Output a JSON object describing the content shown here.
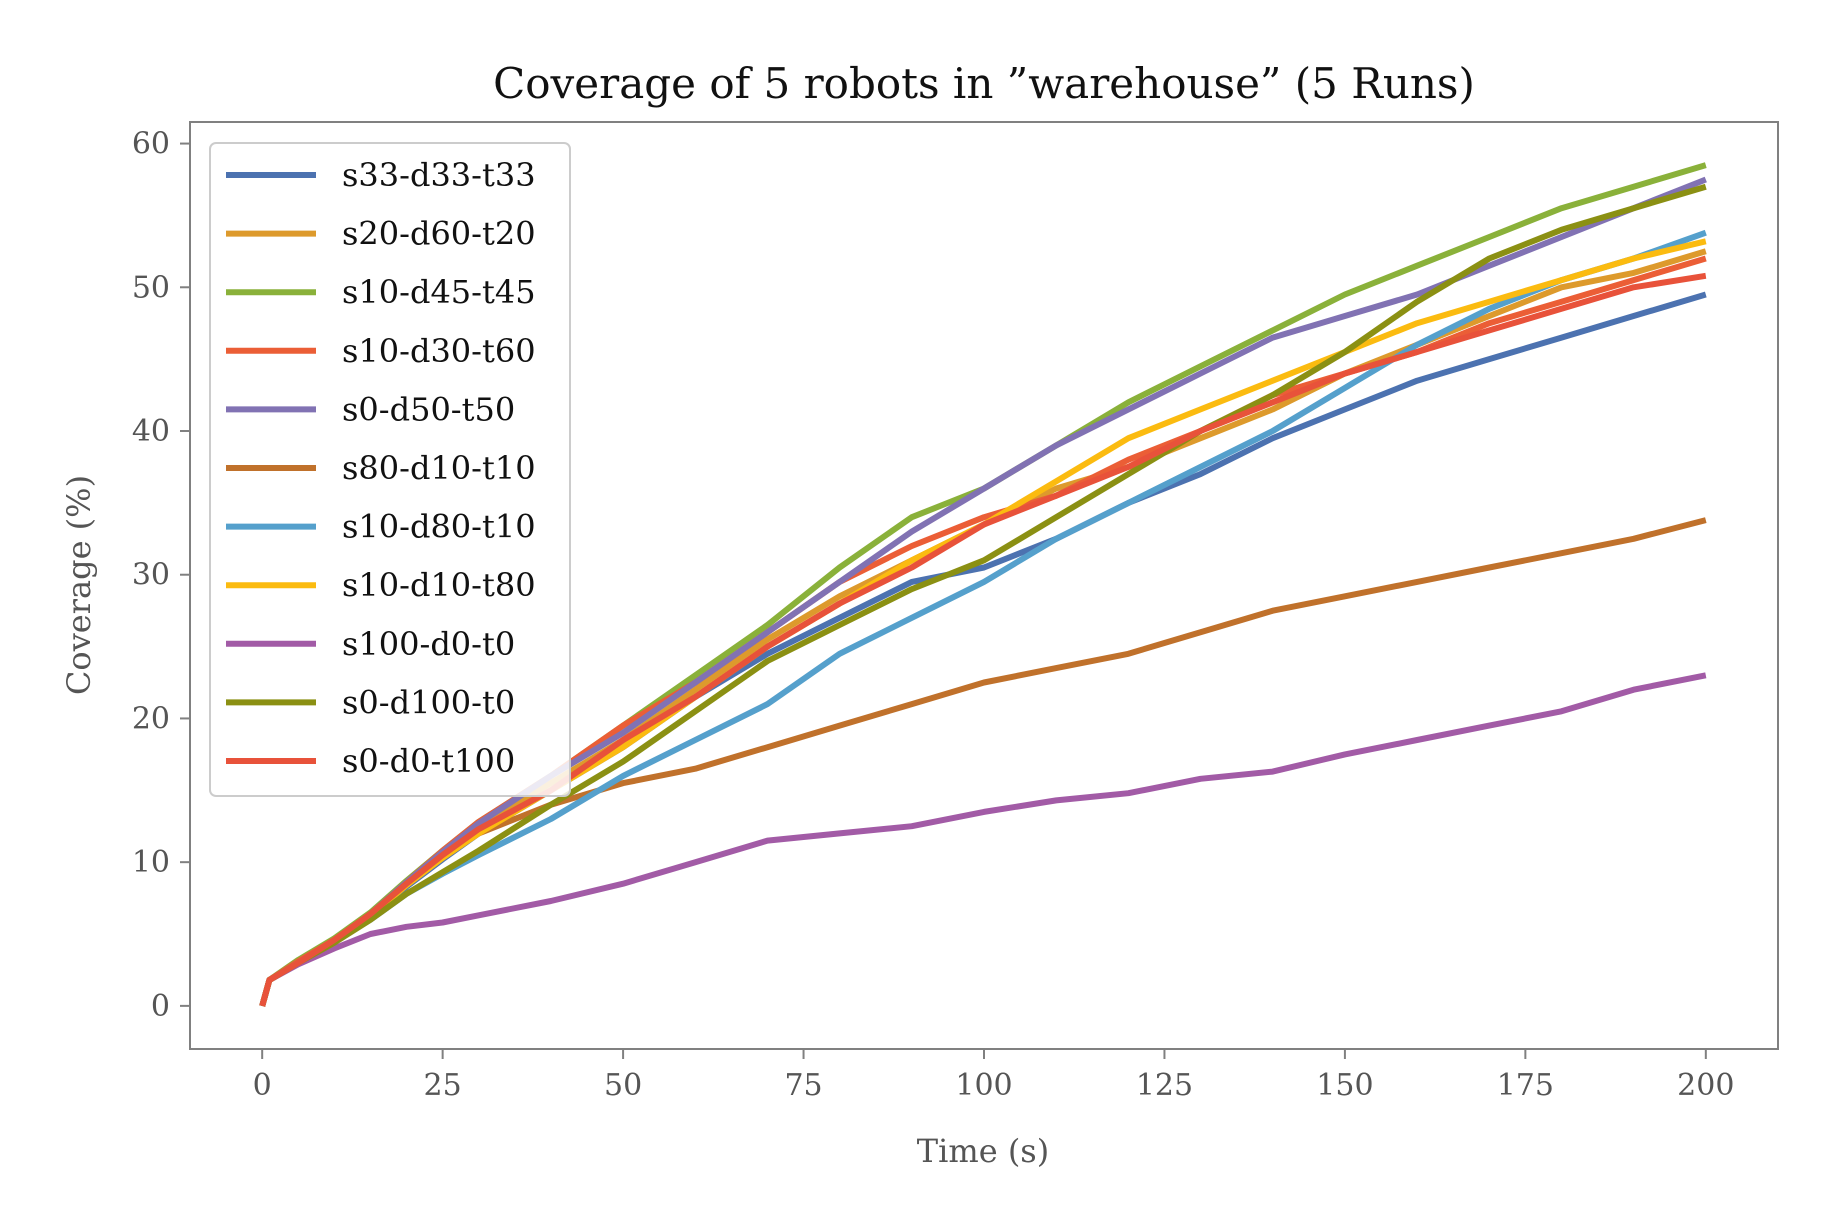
{
  "chart_data": {
    "type": "line",
    "title": "Coverage of 5 robots in ”warehouse” (5 Runs)",
    "xlabel": "Time (s)",
    "ylabel": "Coverage (%)",
    "xlim": [
      -10,
      210
    ],
    "ylim": [
      -3,
      61.5
    ],
    "xticks": [
      "0",
      "25",
      "50",
      "75",
      "100",
      "125",
      "150",
      "175",
      "200"
    ],
    "yticks": [
      "0",
      "10",
      "20",
      "30",
      "40",
      "50",
      "60"
    ],
    "grid": false,
    "legend": "top-left",
    "x": [
      0,
      1,
      5,
      10,
      15,
      20,
      25,
      30,
      40,
      50,
      60,
      70,
      80,
      90,
      100,
      110,
      120,
      130,
      140,
      150,
      160,
      170,
      180,
      190,
      200
    ],
    "series": [
      {
        "name": "s33-d33-t33",
        "color": "#4c72b0",
        "values": [
          0,
          1.8,
          3.0,
          4.5,
          6.3,
          8.3,
          10.2,
          12.0,
          15.0,
          18.0,
          21.5,
          24.5,
          27.0,
          29.5,
          30.5,
          32.5,
          35.0,
          37.0,
          39.5,
          41.5,
          43.5,
          45.0,
          46.5,
          48.0,
          49.5
        ]
      },
      {
        "name": "s20-d60-t20",
        "color": "#dd9a2c",
        "values": [
          0,
          1.8,
          3.0,
          4.5,
          6.3,
          8.5,
          10.5,
          12.5,
          15.5,
          18.5,
          22.0,
          25.5,
          28.5,
          31.0,
          33.5,
          36.0,
          37.5,
          39.5,
          41.5,
          44.0,
          46.0,
          48.0,
          50.0,
          51.0,
          52.5
        ]
      },
      {
        "name": "s10-d45-t45",
        "color": "#8ab13a",
        "values": [
          0,
          1.8,
          3.2,
          4.7,
          6.5,
          8.7,
          10.8,
          12.8,
          16.0,
          19.5,
          23.0,
          26.5,
          30.5,
          34.0,
          36.0,
          39.0,
          42.0,
          44.5,
          47.0,
          49.5,
          51.5,
          53.5,
          55.5,
          57.0,
          58.5
        ]
      },
      {
        "name": "s10-d30-t60",
        "color": "#eb5e36",
        "values": [
          0,
          1.8,
          3.1,
          4.6,
          6.4,
          8.6,
          10.8,
          12.8,
          16.0,
          19.5,
          22.5,
          26.0,
          29.5,
          32.0,
          34.0,
          35.5,
          38.0,
          40.0,
          42.5,
          44.0,
          45.5,
          47.5,
          49.0,
          50.5,
          52.0
        ]
      },
      {
        "name": "s0-d50-t50",
        "color": "#8172b3",
        "values": [
          0,
          1.8,
          3.0,
          4.5,
          6.4,
          8.6,
          10.7,
          12.7,
          16.0,
          19.0,
          22.5,
          26.0,
          29.5,
          33.0,
          36.0,
          39.0,
          41.5,
          44.0,
          46.5,
          48.0,
          49.5,
          51.5,
          53.5,
          55.5,
          57.5
        ]
      },
      {
        "name": "s80-d10-t10",
        "color": "#c0712b",
        "values": [
          0,
          1.8,
          3.0,
          4.5,
          6.4,
          8.5,
          10.4,
          12.0,
          14.0,
          15.5,
          16.5,
          18.0,
          19.5,
          21.0,
          22.5,
          23.5,
          24.5,
          26.0,
          27.5,
          28.5,
          29.5,
          30.5,
          31.5,
          32.5,
          33.8
        ]
      },
      {
        "name": "s10-d80-t10",
        "color": "#55a0cc",
        "values": [
          0,
          1.8,
          3.0,
          4.5,
          6.0,
          7.8,
          9.2,
          10.5,
          13.0,
          16.0,
          18.5,
          21.0,
          24.5,
          27.0,
          29.5,
          32.5,
          35.0,
          37.5,
          40.0,
          43.0,
          46.0,
          48.5,
          50.5,
          52.0,
          53.8
        ]
      },
      {
        "name": "s10-d10-t80",
        "color": "#fbbb10",
        "values": [
          0,
          1.8,
          3.0,
          4.5,
          6.3,
          8.4,
          10.3,
          12.0,
          15.0,
          18.0,
          21.5,
          25.0,
          28.0,
          31.0,
          33.5,
          36.5,
          39.5,
          41.5,
          43.5,
          45.5,
          47.5,
          49.0,
          50.5,
          52.0,
          53.2
        ]
      },
      {
        "name": "s100-d0-t0",
        "color": "#a25ba6",
        "values": [
          0,
          1.8,
          2.9,
          4.0,
          5.0,
          5.5,
          5.8,
          6.3,
          7.3,
          8.5,
          10.0,
          11.5,
          12.0,
          12.5,
          13.5,
          14.3,
          14.8,
          15.8,
          16.3,
          17.5,
          18.5,
          19.5,
          20.5,
          22.0,
          23.0
        ]
      },
      {
        "name": "s0-d100-t0",
        "color": "#8b9013",
        "values": [
          0,
          1.8,
          3.0,
          4.4,
          6.0,
          7.8,
          9.3,
          10.8,
          14.0,
          17.0,
          20.5,
          24.0,
          26.5,
          29.0,
          31.0,
          34.0,
          37.0,
          40.0,
          42.5,
          45.5,
          49.0,
          52.0,
          54.0,
          55.5,
          57.0
        ]
      },
      {
        "name": "s0-d0-t100",
        "color": "#e8523a",
        "values": [
          0,
          1.8,
          3.0,
          4.6,
          6.4,
          8.5,
          10.5,
          12.3,
          15.0,
          18.5,
          21.5,
          25.0,
          28.0,
          30.5,
          33.5,
          35.5,
          37.5,
          40.0,
          42.0,
          44.0,
          45.5,
          47.0,
          48.5,
          50.0,
          50.8
        ]
      }
    ]
  }
}
